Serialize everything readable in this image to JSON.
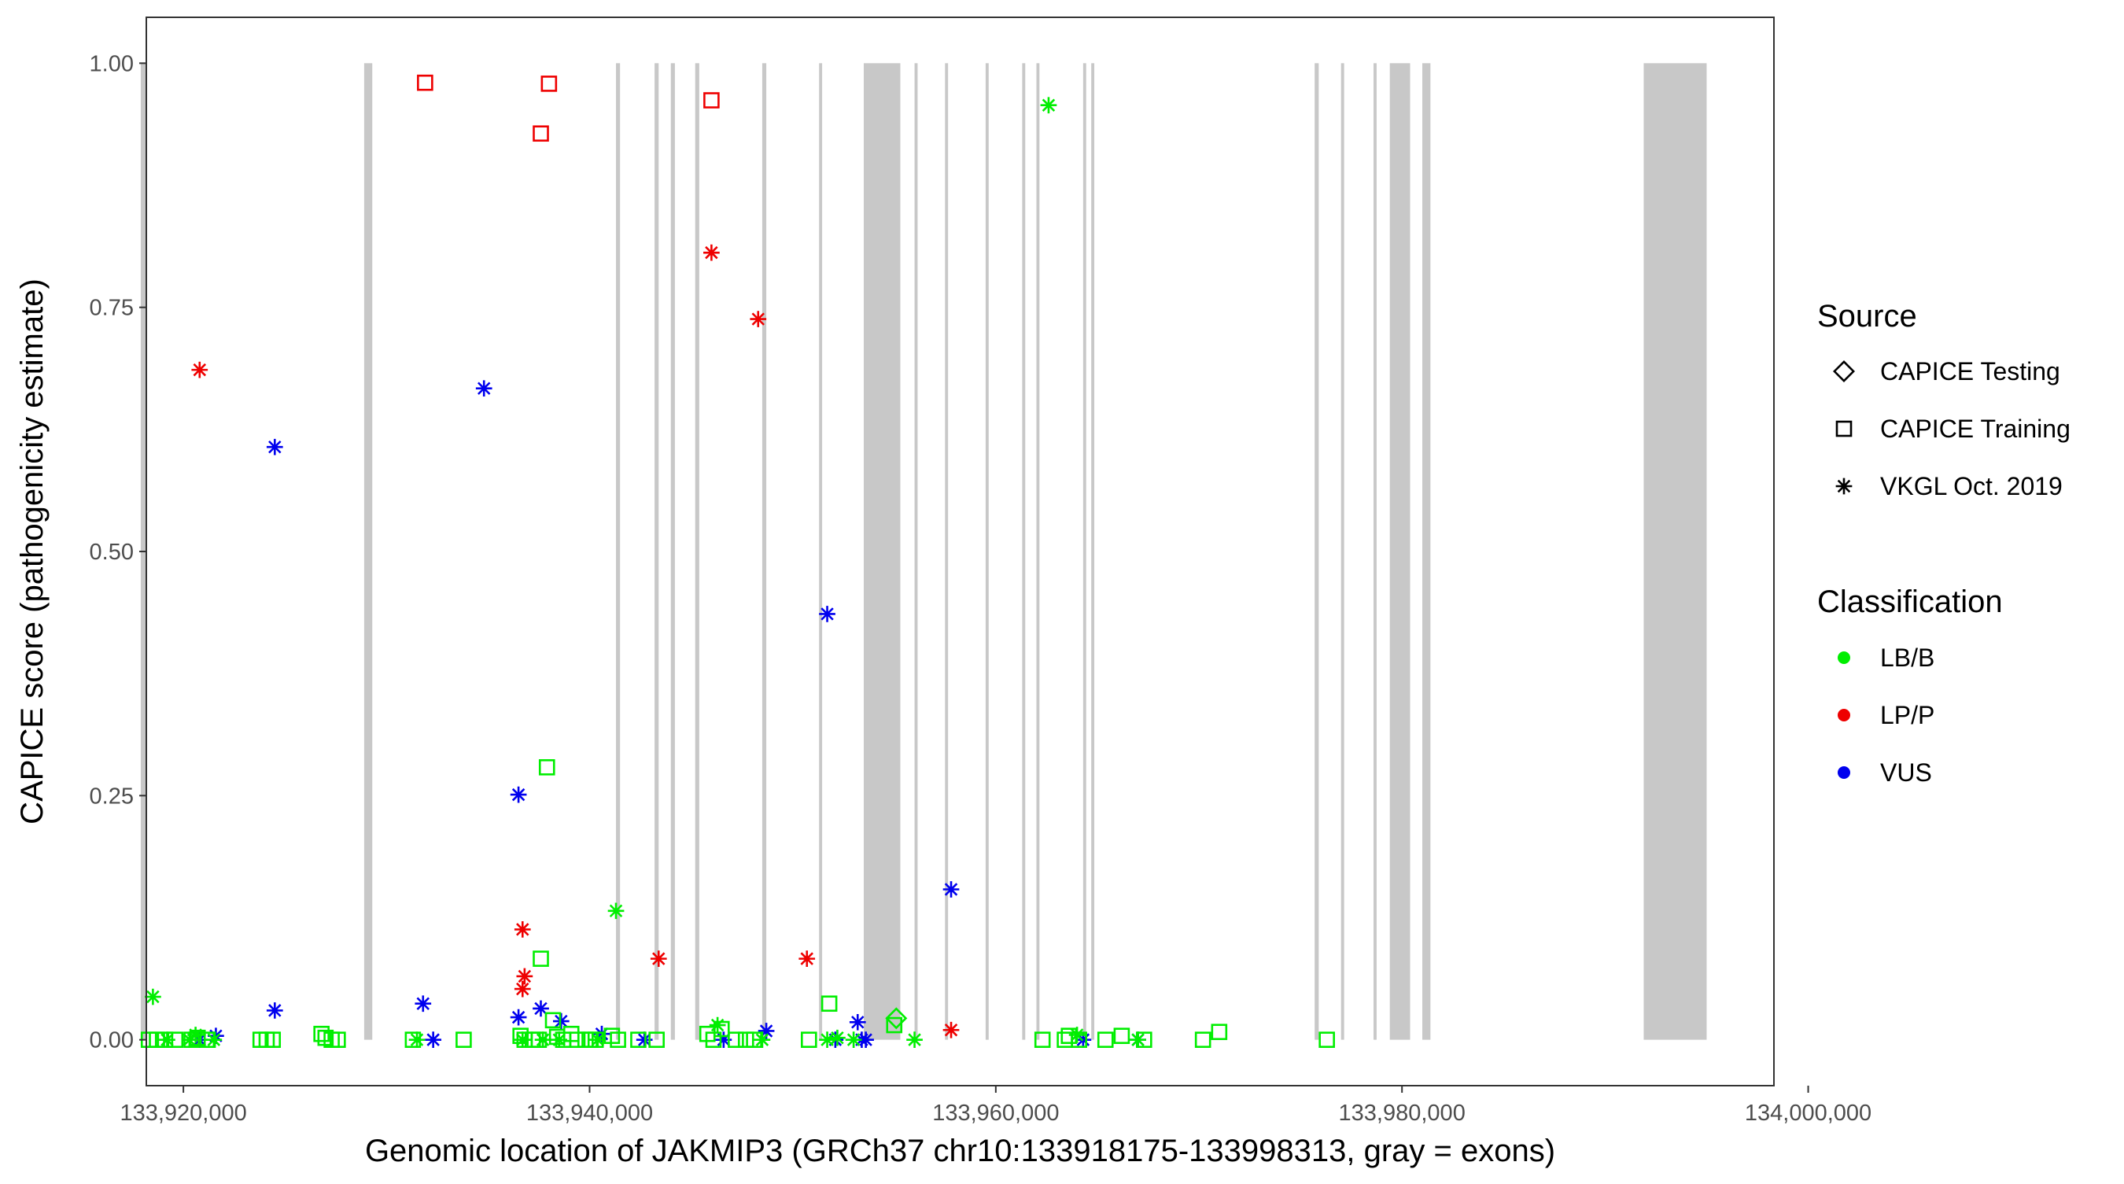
{
  "chart_data": {
    "type": "scatter",
    "xlabel": "Genomic location of JAKMIP3 (GRCh37 chr10:133918175-133998313, gray = exons)",
    "ylabel": "CAPICE score (pathogenicity estimate)",
    "xlim": [
      133918175,
      133998313
    ],
    "ylim": [
      -0.047,
      1.047
    ],
    "x_ticks": [
      133920000,
      133940000,
      133960000,
      133980000,
      134000000
    ],
    "x_tick_labels": [
      "133,920,000",
      "133,940,000",
      "133,960,000",
      "133,980,000",
      "134,000,000"
    ],
    "y_ticks": [
      0,
      0.25,
      0.5,
      0.75,
      1
    ],
    "y_tick_labels": [
      "0.00",
      "0.25",
      "0.50",
      "0.75",
      "1.00"
    ],
    "grid": false,
    "exon_color": "#c8c8c8",
    "exons": [
      [
        133917900,
        133918200
      ],
      [
        133928900,
        133929300
      ],
      [
        133941300,
        133941500
      ],
      [
        133943200,
        133943400
      ],
      [
        133944000,
        133944200
      ],
      [
        133945200,
        133945400
      ],
      [
        133948500,
        133948700
      ],
      [
        133951300,
        133951450
      ],
      [
        133953500,
        133955300
      ],
      [
        133956000,
        133956150
      ],
      [
        133957500,
        133957650
      ],
      [
        133959500,
        133959650
      ],
      [
        133961300,
        133961450
      ],
      [
        133962000,
        133962150
      ],
      [
        133964300,
        133964450
      ],
      [
        133964700,
        133964850
      ],
      [
        133975700,
        133975900
      ],
      [
        133977000,
        133977150
      ],
      [
        133978600,
        133978750
      ],
      [
        133979400,
        133980400
      ],
      [
        133981000,
        133981400
      ],
      [
        133991900,
        133995000
      ]
    ],
    "legend": {
      "position": "right",
      "source_title": "Source",
      "source_items": [
        {
          "label": "CAPICE Testing",
          "shape": "diamond"
        },
        {
          "label": "CAPICE Training",
          "shape": "square"
        },
        {
          "label": "VKGL Oct. 2019",
          "shape": "asterisk"
        }
      ],
      "class_title": "Classification",
      "class_items": [
        {
          "label": "LB/B",
          "color": "#00ee00"
        },
        {
          "label": "LP/P",
          "color": "#ee0000"
        },
        {
          "label": "VUS",
          "color": "#0000ee"
        }
      ]
    },
    "series": [
      {
        "source": "CAPICE Training",
        "classification": "LP/P",
        "shape": "square",
        "color": "#ee0000",
        "x": [
          133931900,
          133937600,
          133938000,
          133946000
        ],
        "y": [
          0.98,
          0.928,
          0.979,
          0.962
        ]
      },
      {
        "source": "VKGL Oct. 2019",
        "classification": "LP/P",
        "shape": "asterisk",
        "color": "#ee0000",
        "x": [
          133920800,
          133936700,
          133936800,
          133936700,
          133943400,
          133946000,
          133948300,
          133950700,
          133957800
        ],
        "y": [
          0.686,
          0.113,
          0.065,
          0.052,
          0.083,
          0.806,
          0.738,
          0.083,
          0.01
        ]
      },
      {
        "source": "VKGL Oct. 2019",
        "classification": "VUS",
        "shape": "asterisk",
        "color": "#0000ee",
        "x": [
          133920800,
          133921600,
          133924500,
          133924500,
          133931800,
          133932300,
          133934800,
          133936500,
          133936500,
          133937600,
          133938600,
          133940600,
          133942700,
          133946600,
          133948700,
          133951700,
          133952100,
          133953200,
          133953400,
          133953600,
          133957800,
          133964300,
          133967000
        ],
        "y": [
          0.0,
          0.004,
          0.607,
          0.03,
          0.037,
          0.0,
          0.667,
          0.251,
          0.023,
          0.032,
          0.019,
          0.006,
          0.0,
          0.0,
          0.009,
          0.436,
          0.0,
          0.018,
          0.0,
          0.0,
          0.154,
          0.0,
          0.0
        ]
      },
      {
        "source": "VKGL Oct. 2019",
        "classification": "LB/B",
        "shape": "asterisk",
        "color": "#00ee00",
        "x": [
          133918500,
          133919200,
          133920300,
          133920600,
          133921500,
          133931500,
          133936700,
          133937700,
          133938500,
          133940400,
          133941300,
          133946300,
          133948500,
          133951700,
          133952200,
          133953000,
          133956000,
          133962600,
          133964000,
          133967000
        ],
        "y": [
          0.044,
          0.0,
          0.0,
          0.005,
          0.0,
          0.0,
          0.0,
          0.0,
          0.0,
          0.0,
          0.132,
          0.015,
          0.0,
          0.0,
          0.002,
          0.0,
          0.0,
          0.957,
          0.005,
          0.0
        ]
      },
      {
        "source": "CAPICE Training",
        "classification": "LB/B",
        "shape": "square",
        "color": "#00ee00",
        "x": [
          133918300,
          133918700,
          133919100,
          133919600,
          133920400,
          133920700,
          133921200,
          133923800,
          133924100,
          133924400,
          133926800,
          133927000,
          133927300,
          133927600,
          133931300,
          133933800,
          133936600,
          133936800,
          133937200,
          133937500,
          133937600,
          133937900,
          133938200,
          133938400,
          133938700,
          133939100,
          133939400,
          133939800,
          133940000,
          133940300,
          133941100,
          133941400,
          133942400,
          133943300,
          133945800,
          133946100,
          133946500,
          133947200,
          133947700,
          133948100,
          133950800,
          133951800,
          133955000,
          133962300,
          133963400,
          133963600,
          133964100,
          133965400,
          133966200,
          133967300,
          133970200,
          133971000,
          133976300
        ],
        "y": [
          0.0,
          0.0,
          0.0,
          0.0,
          0.0,
          0.002,
          0.0,
          0.0,
          0.0,
          0.0,
          0.006,
          0.002,
          0.0,
          0.0,
          0.0,
          0.0,
          0.004,
          0.0,
          0.0,
          0.0,
          0.083,
          0.279,
          0.02,
          0.003,
          0.0,
          0.006,
          0.0,
          0.0,
          0.0,
          0.0,
          0.004,
          0.0,
          0.0,
          0.0,
          0.006,
          0.0,
          0.011,
          0.0,
          0.0,
          0.0,
          0.0,
          0.037,
          0.015,
          0.0,
          0.0,
          0.004,
          0.0,
          0.0,
          0.004,
          0.0,
          0.0,
          0.008,
          0.0
        ]
      },
      {
        "source": "CAPICE Testing",
        "classification": "LB/B",
        "shape": "diamond",
        "color": "#00ee00",
        "x": [
          133955100
        ],
        "y": [
          0.022
        ]
      }
    ]
  }
}
